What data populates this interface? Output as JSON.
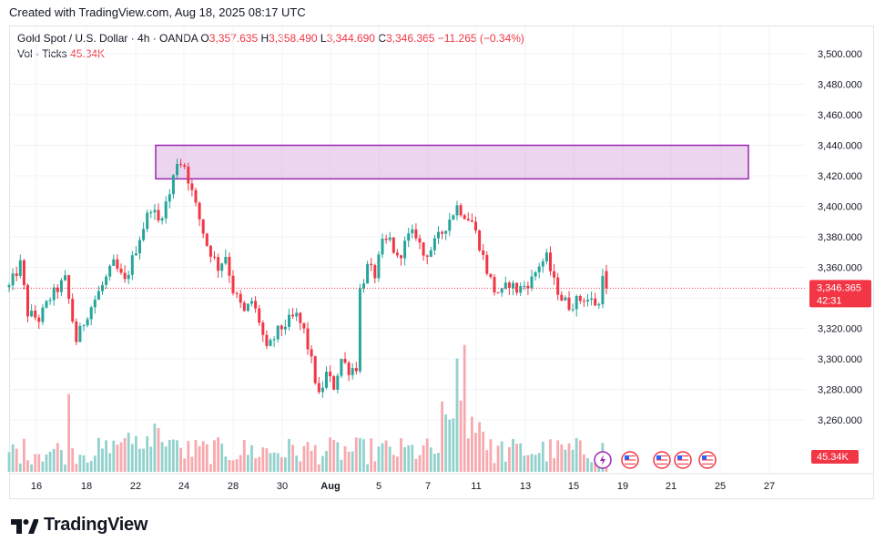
{
  "header": {
    "created": "Created with TradingView.com, Aug 18, 2025 08:17 UTC"
  },
  "legend": {
    "symbol": "Gold Spot / U.S. Dollar · 4h · OANDA",
    "o_label": "O",
    "o": "3,357.635",
    "h_label": "H",
    "h": "3,358.490",
    "l_label": "L",
    "l": "3,344.690",
    "c_label": "C",
    "c": "3,346.365",
    "change": "−11.265 (−0.34%)",
    "vol_label": "Vol · Ticks",
    "vol_value": "45.34K"
  },
  "brand": {
    "name": "TradingView"
  },
  "colors": {
    "up": "#26a69a",
    "down": "#f23645",
    "up_vol": "#92d2cc",
    "down_vol": "#f7a9ae",
    "zone_fill": "#e1bee7",
    "zone_stroke": "#9c27b0",
    "price_line": "#f23645"
  },
  "chart_data": {
    "type": "candlestick",
    "ylim": [
      3260,
      3510
    ],
    "y_ticks": [
      "3,500.000",
      "3,480.000",
      "3,460.000",
      "3,440.000",
      "3,420.000",
      "3,400.000",
      "3,380.000",
      "3,360.000",
      "3,340.000",
      "3,320.000",
      "3,300.000",
      "3,280.000",
      "3,260.000"
    ],
    "x_ticks": [
      "16",
      "18",
      "22",
      "24",
      "28",
      "30",
      "Aug",
      "5",
      "7",
      "11",
      "13",
      "15",
      "19",
      "21",
      "25",
      "27"
    ],
    "last_price": "3,346.365",
    "countdown": "42:31",
    "volume_label": "45.34K",
    "zone": {
      "from": "Jul 22",
      "to": "Aug 25",
      "low": 3418,
      "high": 3440
    },
    "event_icons": [
      "lightning-icon",
      "us-flag-icon",
      "us-flag-icon",
      "us-flag-icon",
      "us-flag-icon"
    ],
    "path": [
      {
        "t": 0,
        "p": 3347
      },
      {
        "t": 3,
        "p": 3362
      },
      {
        "t": 5,
        "p": 3330
      },
      {
        "t": 8,
        "p": 3326
      },
      {
        "t": 11,
        "p": 3340
      },
      {
        "t": 15,
        "p": 3352
      },
      {
        "t": 18,
        "p": 3312
      },
      {
        "t": 21,
        "p": 3330
      },
      {
        "t": 25,
        "p": 3348
      },
      {
        "t": 28,
        "p": 3362
      },
      {
        "t": 31,
        "p": 3350
      },
      {
        "t": 35,
        "p": 3380
      },
      {
        "t": 38,
        "p": 3400
      },
      {
        "t": 40,
        "p": 3390
      },
      {
        "t": 43,
        "p": 3408
      },
      {
        "t": 45,
        "p": 3430
      },
      {
        "t": 47,
        "p": 3427
      },
      {
        "t": 50,
        "p": 3400
      },
      {
        "t": 53,
        "p": 3375
      },
      {
        "t": 56,
        "p": 3360
      },
      {
        "t": 58,
        "p": 3368
      },
      {
        "t": 60,
        "p": 3345
      },
      {
        "t": 63,
        "p": 3330
      },
      {
        "t": 65,
        "p": 3338
      },
      {
        "t": 67,
        "p": 3325
      },
      {
        "t": 69,
        "p": 3305
      },
      {
        "t": 72,
        "p": 3318
      },
      {
        "t": 75,
        "p": 3325
      },
      {
        "t": 77,
        "p": 3328
      },
      {
        "t": 79,
        "p": 3318
      },
      {
        "t": 81,
        "p": 3298
      },
      {
        "t": 83,
        "p": 3275
      },
      {
        "t": 85,
        "p": 3290
      },
      {
        "t": 87,
        "p": 3282
      },
      {
        "t": 89,
        "p": 3300
      },
      {
        "t": 91,
        "p": 3293
      },
      {
        "t": 93,
        "p": 3295
      },
      {
        "t": 94,
        "p": 3345
      },
      {
        "t": 96,
        "p": 3360
      },
      {
        "t": 98,
        "p": 3355
      },
      {
        "t": 100,
        "p": 3375
      },
      {
        "t": 102,
        "p": 3378
      },
      {
        "t": 104,
        "p": 3365
      },
      {
        "t": 107,
        "p": 3380
      },
      {
        "t": 109,
        "p": 3382
      },
      {
        "t": 111,
        "p": 3368
      },
      {
        "t": 113,
        "p": 3372
      },
      {
        "t": 116,
        "p": 3383
      },
      {
        "t": 118,
        "p": 3392
      },
      {
        "t": 120,
        "p": 3400
      },
      {
        "t": 122,
        "p": 3395
      },
      {
        "t": 124,
        "p": 3390
      },
      {
        "t": 126,
        "p": 3375
      },
      {
        "t": 128,
        "p": 3358
      },
      {
        "t": 130,
        "p": 3345
      },
      {
        "t": 132,
        "p": 3343
      },
      {
        "t": 134,
        "p": 3350
      },
      {
        "t": 136,
        "p": 3345
      },
      {
        "t": 138,
        "p": 3348
      },
      {
        "t": 140,
        "p": 3352
      },
      {
        "t": 142,
        "p": 3362
      },
      {
        "t": 144,
        "p": 3366
      },
      {
        "t": 146,
        "p": 3350
      },
      {
        "t": 148,
        "p": 3340
      },
      {
        "t": 150,
        "p": 3335
      },
      {
        "t": 152,
        "p": 3338
      },
      {
        "t": 154,
        "p": 3340
      },
      {
        "t": 156,
        "p": 3338
      },
      {
        "t": 158,
        "p": 3335
      },
      {
        "t": 159,
        "p": 3358
      },
      {
        "t": 160,
        "p": 3346
      }
    ]
  }
}
